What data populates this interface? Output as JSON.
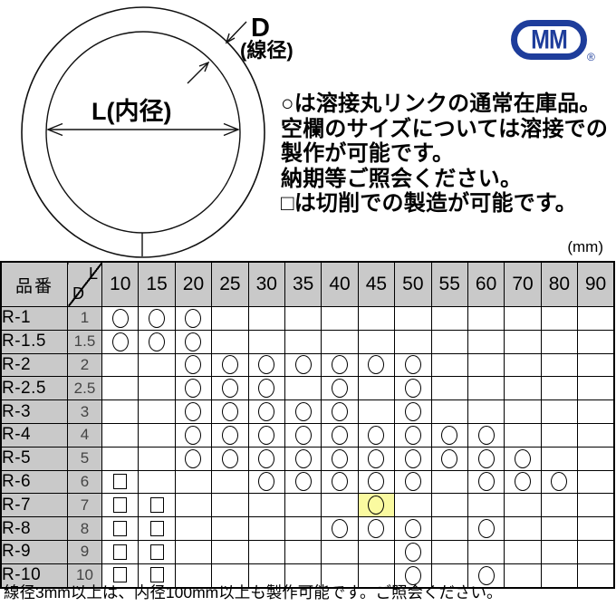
{
  "diagram": {
    "label_d": "D",
    "label_d_sub": "(線径)",
    "label_l": "L(内径)"
  },
  "logo": {
    "text": "MM",
    "registered": "®"
  },
  "notes": {
    "lines": [
      "○は溶接丸リンクの通常在庫品。",
      "空欄のサイズについては溶接での",
      "製作が可能です。",
      "納期等ご照会ください。",
      "□は切削での製造が可能です。"
    ]
  },
  "table": {
    "unit_label": "(mm)",
    "corner_header": "品番",
    "diag_top": "L",
    "diag_bottom": "D",
    "columns": [
      "10",
      "15",
      "20",
      "25",
      "30",
      "35",
      "40",
      "45",
      "50",
      "55",
      "60",
      "70",
      "80",
      "90"
    ],
    "rows": [
      {
        "part": "R-1",
        "d": "1",
        "circles": [
          "10",
          "15",
          "20"
        ],
        "squares": [],
        "highlights": []
      },
      {
        "part": "R-1.5",
        "d": "1.5",
        "circles": [
          "10",
          "15",
          "20"
        ],
        "squares": [],
        "highlights": []
      },
      {
        "part": "R-2",
        "d": "2",
        "circles": [
          "20",
          "25",
          "30",
          "35",
          "40",
          "45",
          "50"
        ],
        "squares": [],
        "highlights": []
      },
      {
        "part": "R-2.5",
        "d": "2.5",
        "circles": [
          "20",
          "25",
          "30",
          "40",
          "50"
        ],
        "squares": [],
        "highlights": []
      },
      {
        "part": "R-3",
        "d": "3",
        "circles": [
          "20",
          "25",
          "30",
          "35",
          "40",
          "50"
        ],
        "squares": [],
        "highlights": []
      },
      {
        "part": "R-4",
        "d": "4",
        "circles": [
          "20",
          "25",
          "30",
          "35",
          "40",
          "45",
          "50",
          "55",
          "60"
        ],
        "squares": [],
        "highlights": []
      },
      {
        "part": "R-5",
        "d": "5",
        "circles": [
          "20",
          "25",
          "30",
          "35",
          "40",
          "45",
          "50",
          "55",
          "60",
          "70"
        ],
        "squares": [],
        "highlights": []
      },
      {
        "part": "R-6",
        "d": "6",
        "circles": [
          "30",
          "35",
          "40",
          "45",
          "50",
          "60",
          "70",
          "80"
        ],
        "squares": [
          "10"
        ],
        "highlights": []
      },
      {
        "part": "R-7",
        "d": "7",
        "circles": [
          "45"
        ],
        "squares": [
          "10",
          "15"
        ],
        "highlights": [
          "45"
        ]
      },
      {
        "part": "R-8",
        "d": "8",
        "circles": [
          "40",
          "45",
          "50",
          "60"
        ],
        "squares": [
          "10",
          "15"
        ],
        "highlights": []
      },
      {
        "part": "R-9",
        "d": "9",
        "circles": [
          "50"
        ],
        "squares": [
          "10",
          "15"
        ],
        "highlights": []
      },
      {
        "part": "R-10",
        "d": "10",
        "circles": [
          "50",
          "60"
        ],
        "squares": [
          "10",
          "15"
        ],
        "highlights": []
      }
    ]
  },
  "footer_note": "線径3mm以上は、内径100mm以上も製作可能です。ご照会ください。",
  "colors": {
    "header_bg": "#c9c9c9",
    "highlight_bg": "#fafaa0",
    "logo_blue": "#1e3d9b"
  }
}
